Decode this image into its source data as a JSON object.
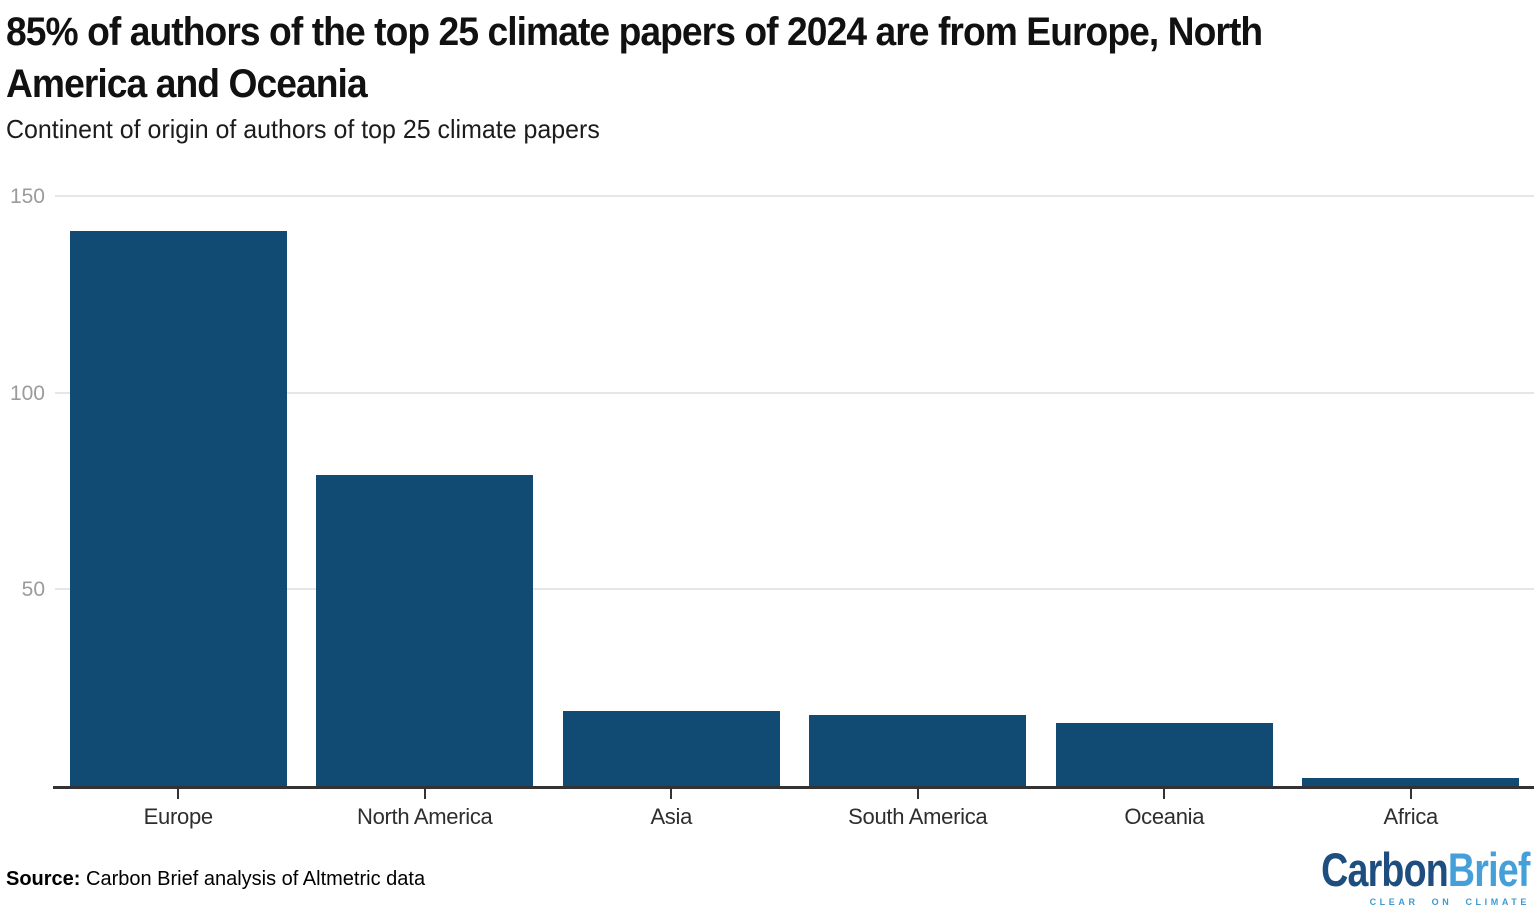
{
  "header": {
    "title_line1": "85% of authors of the top 25 climate papers of 2024 are from Europe, North",
    "title_line2": "America and Oceania",
    "subtitle": "Continent of origin of authors of top 25 climate papers"
  },
  "chart_data": {
    "type": "bar",
    "title": "85% of authors of the top 25 climate papers of 2024 are from Europe, North America and Oceania",
    "subtitle": "Continent of origin of authors of top 25 climate papers",
    "categories": [
      "Europe",
      "North America",
      "Asia",
      "South America",
      "Oceania",
      "Africa"
    ],
    "values": [
      141,
      79,
      19,
      18,
      16,
      2
    ],
    "xlabel": "",
    "ylabel": "",
    "ylim": [
      0,
      150
    ],
    "yticks": [
      50,
      100,
      150
    ],
    "grid": true,
    "legend": "none",
    "bar_color": "#114b73"
  },
  "colors": {
    "bar": "#114b73",
    "grid": "#e6e6e6",
    "axis": "#333333",
    "ytick_label": "#9b9b9b",
    "xtick_label": "#2e2e2e"
  },
  "footer": {
    "source_label": "Source:",
    "source_text": " Carbon Brief analysis of Altmetric data"
  },
  "logo": {
    "part1": "Carbon",
    "part2": "Brief",
    "tagline": "CLEAR ON CLIMATE",
    "color_part1": "#1d4e7f",
    "color_part2": "#45a0d9",
    "color_tagline": "#3d9bd1"
  }
}
